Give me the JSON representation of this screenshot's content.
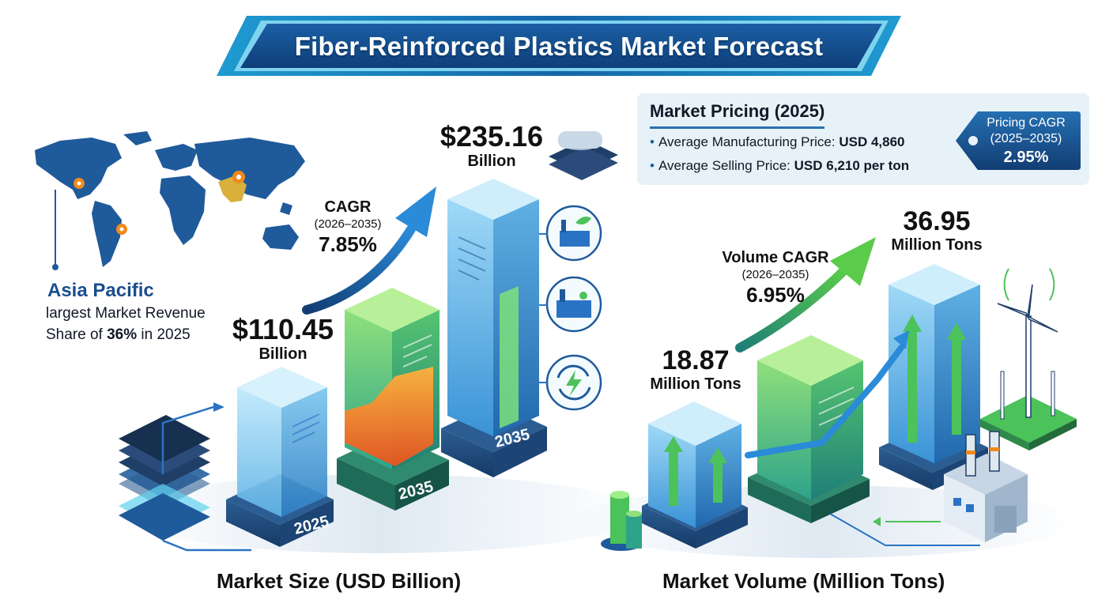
{
  "header": {
    "title": "Fiber-Reinforced Plastics Market Forecast"
  },
  "region": {
    "name": "Asia Pacific",
    "line1": "largest Market Revenue",
    "line2_prefix": "Share of ",
    "share": "36%",
    "line2_suffix": " in 2025"
  },
  "market_size": {
    "section_label": "Market Size (USD Billion)",
    "start": {
      "value": "$110.45",
      "unit": "Billion",
      "year": "2025",
      "amount": 110.45
    },
    "mid": {
      "year": "2035"
    },
    "end": {
      "value": "$235.16",
      "unit": "Billion",
      "year": "2035",
      "amount": 235.16
    },
    "cagr": {
      "label": "CAGR",
      "period": "(2026–2035)",
      "value": "7.85%"
    },
    "icons": [
      "stacked-fiber-sheets-icon",
      "eco-factory-icon",
      "industrial-plant-icon",
      "energy-recycle-icon"
    ]
  },
  "market_volume": {
    "section_label": "Market Volume (Million Tons)",
    "start": {
      "value": "18.87",
      "unit": "Million Tons",
      "amount": 18.87
    },
    "end": {
      "value": "36.95",
      "unit": "Million Tons",
      "amount": 36.95
    },
    "cagr": {
      "label": "Volume CAGR",
      "period": "(2026–2035)",
      "value": "6.95%"
    },
    "icons": [
      "storage-tanks-icon",
      "factory-icon",
      "wind-turbine-icon"
    ]
  },
  "pricing": {
    "title": "Market Pricing (2025)",
    "items": [
      {
        "label": "Average Manufacturing Price: ",
        "value": "USD 4,860"
      },
      {
        "label": "Average Selling Price: ",
        "value": "USD 6,210 per ton"
      }
    ],
    "cagr_tag": {
      "label": "Pricing CAGR",
      "period": "(2025–2035)",
      "value": "2.95%"
    }
  },
  "colors": {
    "navy": "#123a73",
    "blue": "#2a73c4",
    "cyan": "#37c3e6",
    "green": "#4cc25a",
    "orange": "#f08a1c",
    "card": "#e6f2f8"
  }
}
